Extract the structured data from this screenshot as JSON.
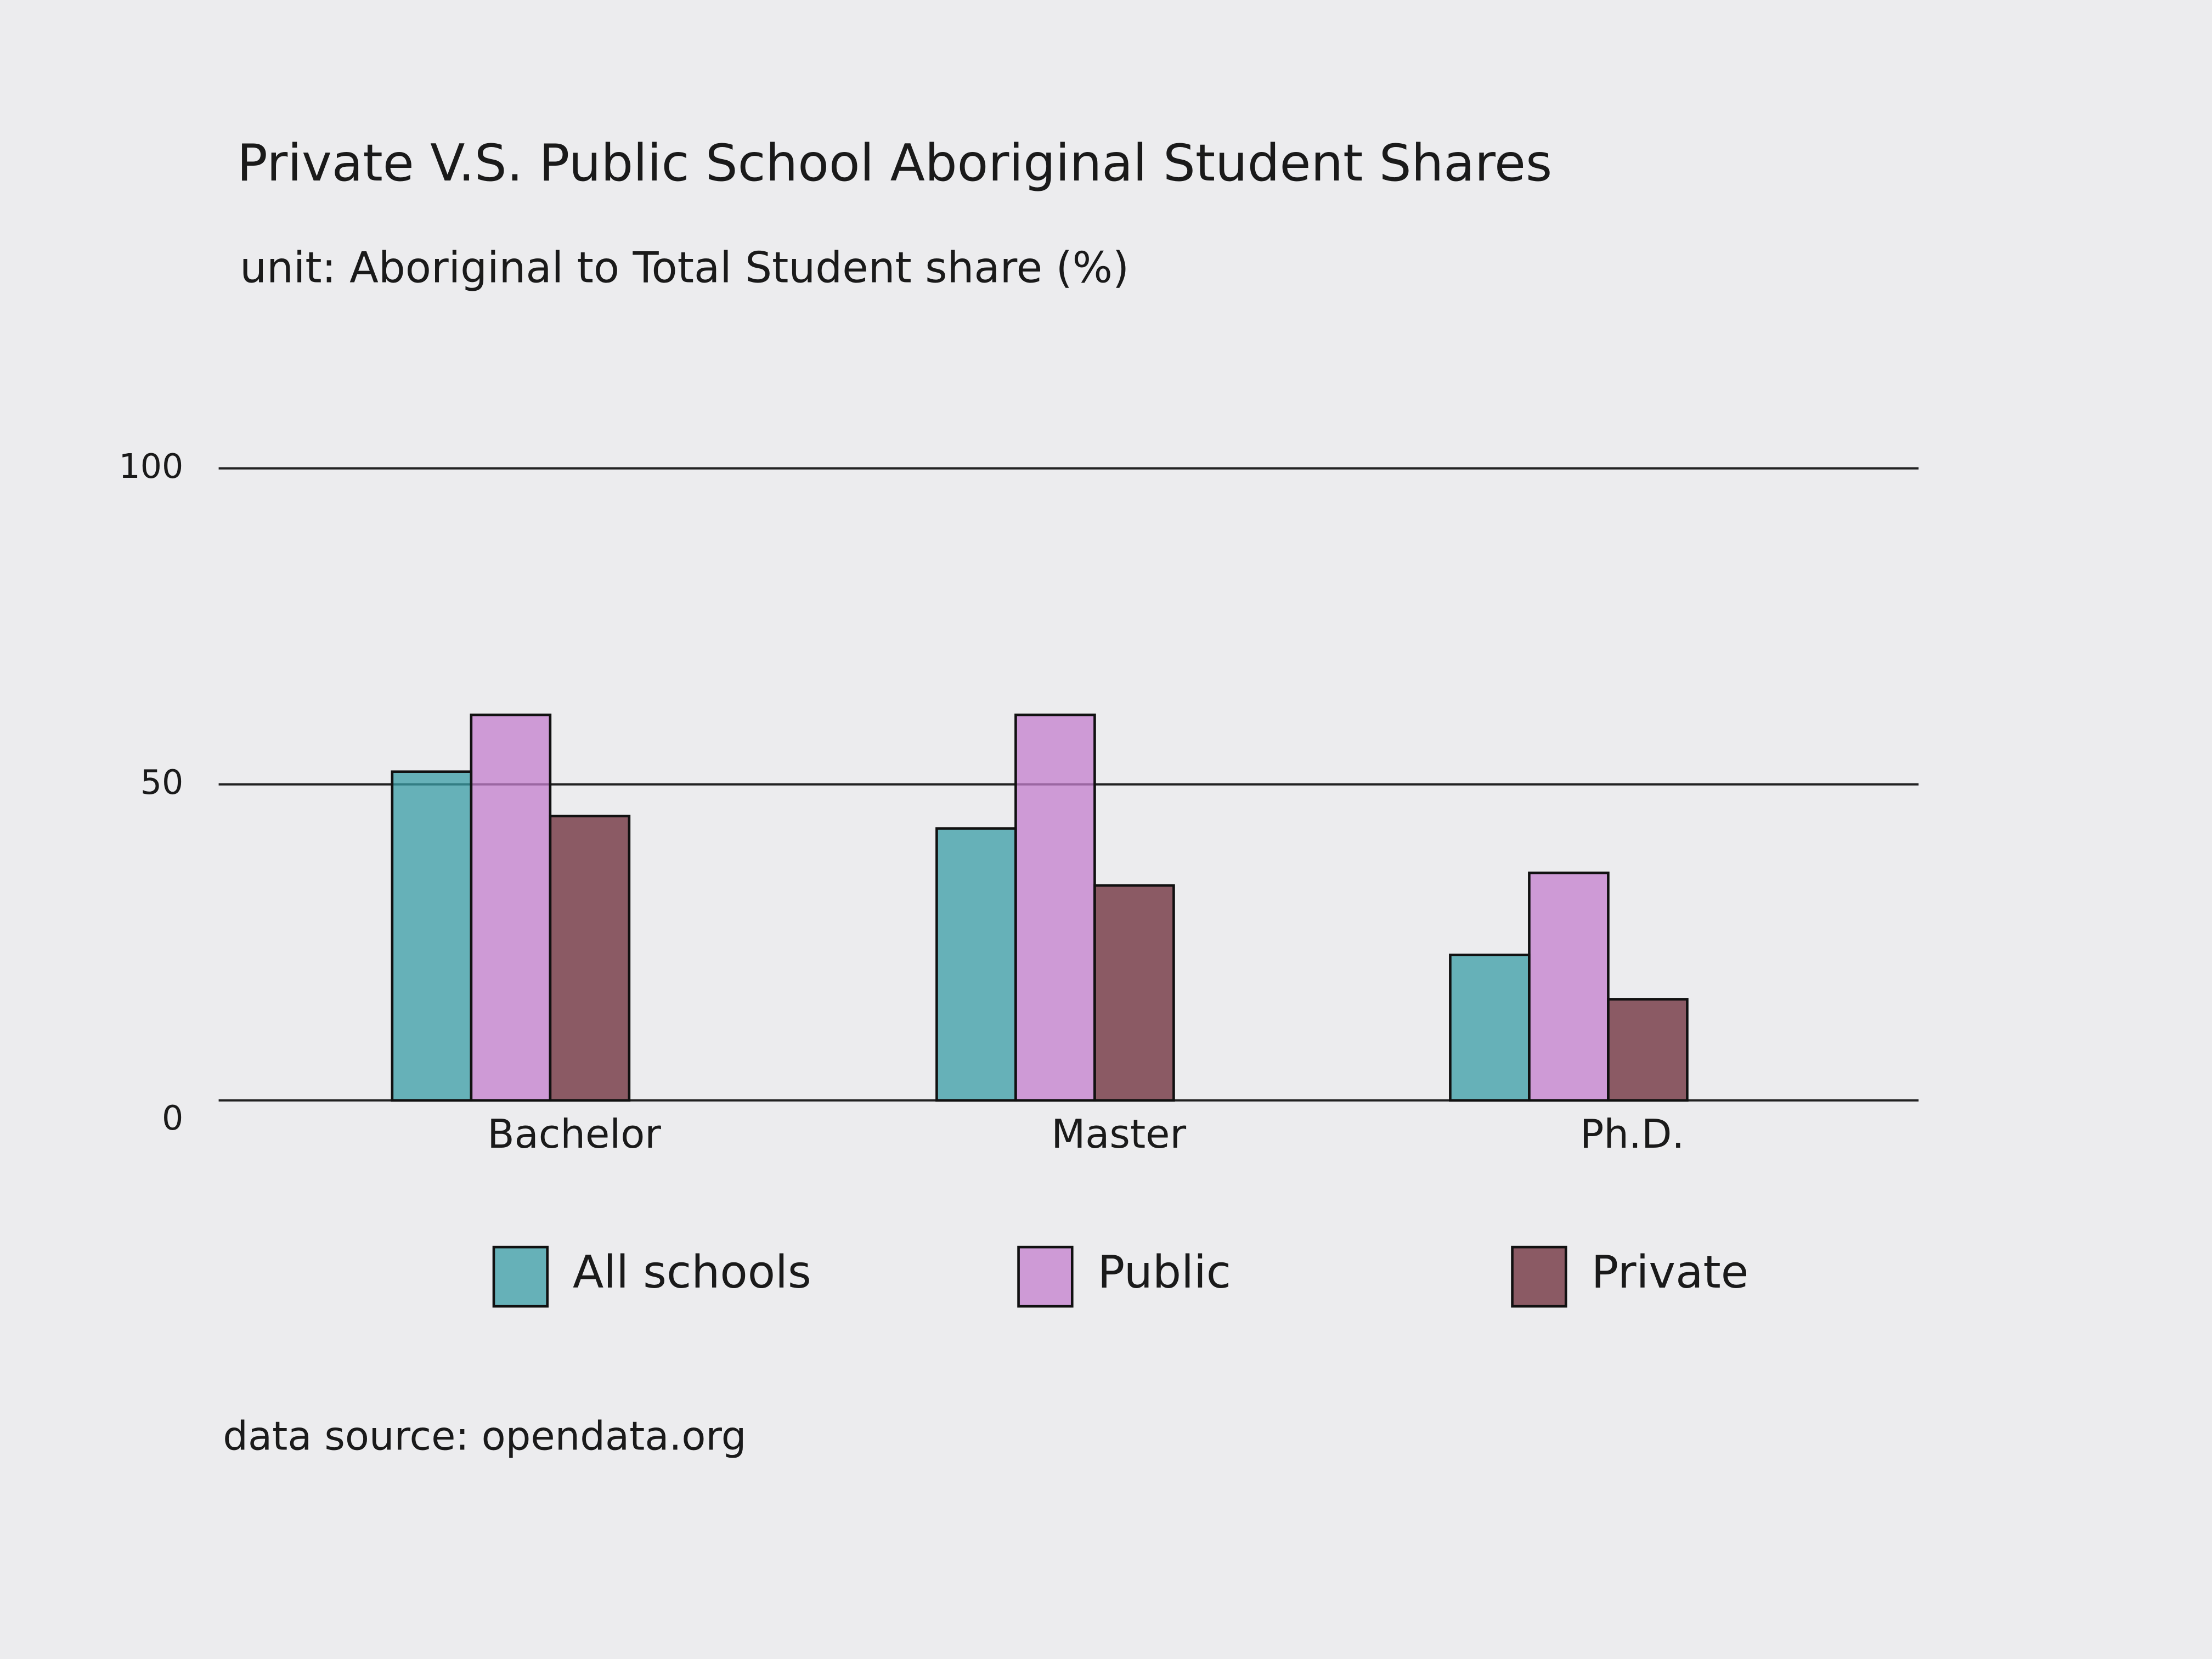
{
  "chart_data": {
    "type": "bar",
    "title": "Private V.S. Public School Aboriginal Student Shares",
    "subtitle": "unit: Aboriginal to Total Student share (%)",
    "source": "data source: opendata.org",
    "categories": [
      "Bachelor",
      "Master",
      "Ph.D."
    ],
    "series": [
      {
        "name": "All schools",
        "color": "#3a9ea5",
        "values": [
          52,
          43,
          23
        ]
      },
      {
        "name": "Public",
        "color": "#c47fce",
        "values": [
          61,
          61,
          36
        ]
      },
      {
        "name": "Private",
        "color": "#6b2a35",
        "values": [
          45,
          34,
          16
        ]
      }
    ],
    "ylim": [
      0,
      100
    ],
    "yticks": [
      0,
      50,
      100
    ],
    "grid": true
  }
}
